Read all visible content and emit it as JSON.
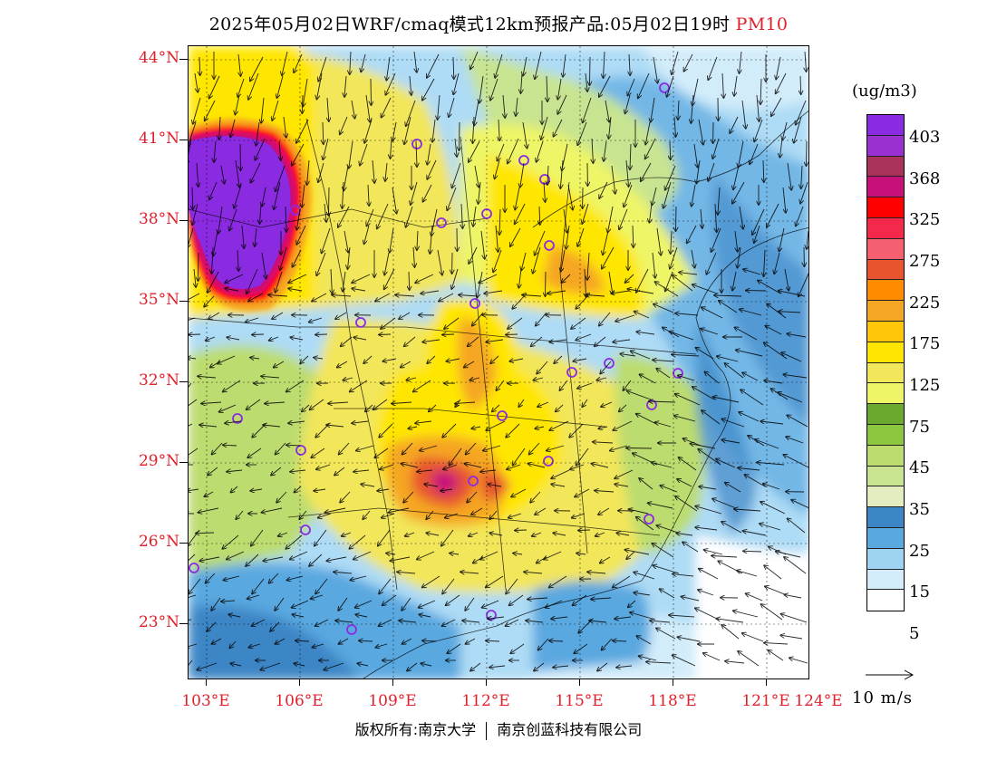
{
  "title": {
    "main": "2025年05月02日WRF/cmaq模式12km预报产品:05月02日19时",
    "pollutant": "PM10"
  },
  "legend": {
    "unit": "(ug/m3)",
    "colors": [
      "#8a2be2",
      "#9b30d0",
      "#a8325a",
      "#c8107a",
      "#ff0000",
      "#f4284a",
      "#f56070",
      "#e8542e",
      "#ff8c00",
      "#f5a623",
      "#ffc60a",
      "#ffe600",
      "#f2e65a",
      "#eef566",
      "#6aa82e",
      "#8cc63f",
      "#bcdc70",
      "#c8e490",
      "#e2edc0",
      "#3c86c6",
      "#5aa8e0",
      "#9ed4f2",
      "#d2ecfa",
      "#ffffff"
    ],
    "labels": [
      "403",
      "368",
      "325",
      "275",
      "225",
      "175",
      "125",
      "75",
      "45",
      "35",
      "25",
      "15",
      "5"
    ]
  },
  "axes": {
    "lat_labels": [
      "44°N",
      "41°N",
      "38°N",
      "35°N",
      "32°N",
      "29°N",
      "26°N",
      "23°N"
    ],
    "lon_labels": [
      "103°E",
      "106°E",
      "109°E",
      "112°E",
      "115°E",
      "118°E",
      "121°E",
      "124°E"
    ]
  },
  "wind_reference": "10 m/s",
  "copyright": {
    "left": "版权所有:南京大学",
    "right": "南京创蓝科技有限公司"
  }
}
